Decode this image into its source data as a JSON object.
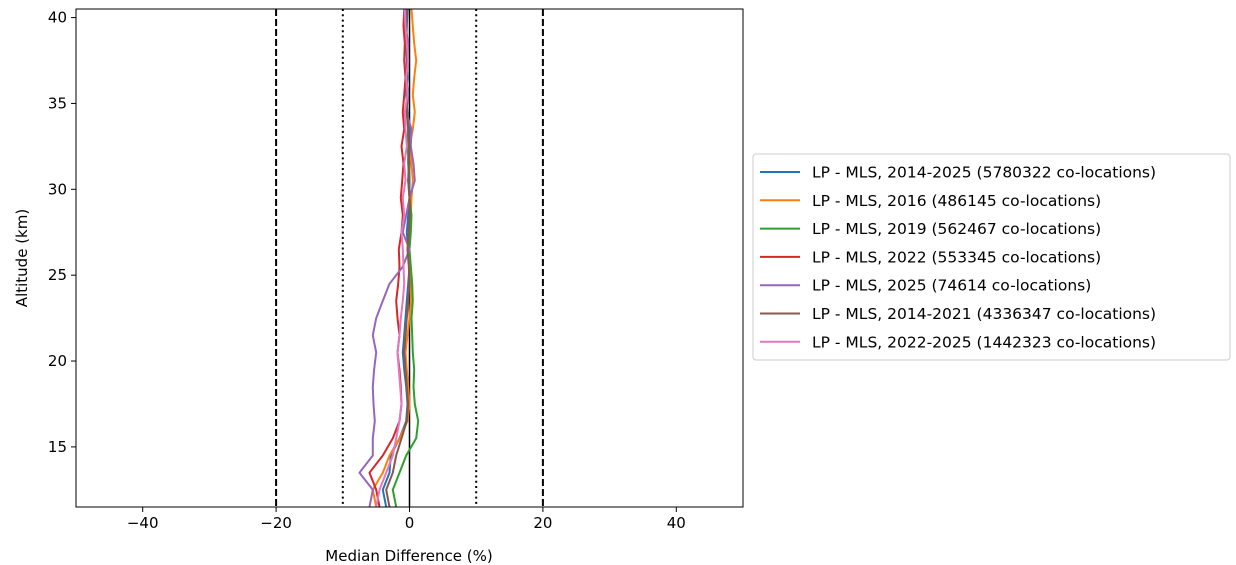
{
  "chart_data": {
    "type": "line",
    "title": "",
    "xlabel": "Median Difference (%)",
    "ylabel": "Altitude (km)",
    "xlim": [
      -50,
      50
    ],
    "ylim": [
      11.5,
      40.5
    ],
    "xticks": [
      -40,
      -20,
      0,
      20,
      40
    ],
    "yticks": [
      15,
      20,
      25,
      30,
      35,
      40
    ],
    "grid": false,
    "legend_placement": "outside-right",
    "reference_lines": [
      {
        "x": -20,
        "style": "dashed",
        "color": "#000000"
      },
      {
        "x": -10,
        "style": "dotted",
        "color": "#000000"
      },
      {
        "x": 0,
        "style": "solid",
        "color": "#000000"
      },
      {
        "x": 10,
        "style": "dotted",
        "color": "#000000"
      },
      {
        "x": 20,
        "style": "dashed",
        "color": "#000000"
      }
    ],
    "y": [
      11.5,
      12.5,
      13.5,
      14.5,
      15.5,
      16.5,
      17.5,
      18.5,
      19.5,
      20.5,
      21.5,
      22.5,
      23.5,
      24.5,
      25.5,
      26.5,
      27.5,
      28.5,
      29.5,
      30.5,
      31.5,
      32.5,
      33.5,
      34.5,
      35.5,
      36.5,
      37.5,
      38.5,
      39.5,
      40.5
    ],
    "series": [
      {
        "name": "LP - MLS, 2014-2025 (5780322 co-locations)",
        "color": "#1f77b4",
        "x": [
          -3.5,
          -4.0,
          -3.0,
          -2.8,
          -1.5,
          -0.5,
          -0.3,
          -0.5,
          -0.8,
          -1.0,
          -0.8,
          -0.6,
          -0.4,
          -0.2,
          0.0,
          -0.2,
          -0.4,
          -0.2,
          0.0,
          0.0,
          -0.2,
          -0.2,
          0.0,
          -0.3,
          -0.5,
          -0.3,
          -0.4,
          -0.5,
          -0.4,
          -0.3
        ]
      },
      {
        "name": "LP - MLS, 2016 (486145 co-locations)",
        "color": "#ff7f0e",
        "x": [
          -5.0,
          -5.5,
          -4.0,
          -3.0,
          -1.5,
          -0.3,
          0.0,
          -0.2,
          -0.4,
          -0.6,
          -0.3,
          0.0,
          0.2,
          0.3,
          0.0,
          -0.3,
          0.0,
          0.2,
          0.3,
          0.5,
          0.3,
          0.0,
          0.5,
          0.8,
          0.5,
          0.7,
          1.0,
          0.7,
          0.5,
          0.3
        ]
      },
      {
        "name": "LP - MLS, 2019 (562467 co-locations)",
        "color": "#2ca02c",
        "x": [
          -2.0,
          -2.5,
          -1.5,
          -0.5,
          1.0,
          1.3,
          0.8,
          0.6,
          0.7,
          0.5,
          0.4,
          0.3,
          0.5,
          0.4,
          0.2,
          0.0,
          0.2,
          0.3,
          0.0,
          -0.2,
          0.0,
          -0.3,
          -0.2,
          -0.4,
          -0.3,
          -0.5,
          -0.3,
          -0.5,
          -0.6,
          -0.6
        ]
      },
      {
        "name": "LP - MLS, 2022 (553345 co-locations)",
        "color": "#d62728",
        "x": [
          -4.5,
          -5.0,
          -6.0,
          -4.0,
          -2.5,
          -1.5,
          -1.2,
          -1.3,
          -1.5,
          -1.8,
          -1.5,
          -1.8,
          -2.0,
          -1.7,
          -1.5,
          -1.6,
          -1.2,
          -1.0,
          -1.3,
          -1.1,
          -0.9,
          -1.2,
          -0.8,
          -1.0,
          -0.8,
          -0.6,
          -0.8,
          -0.7,
          -0.9,
          -0.8
        ]
      },
      {
        "name": "LP - MLS, 2025 (74614 co-locations)",
        "color": "#9467bd",
        "x": [
          -6.0,
          -5.5,
          -7.5,
          -5.5,
          -5.5,
          -5.2,
          -5.4,
          -5.5,
          -5.3,
          -5.0,
          -5.5,
          -5.0,
          -4.0,
          -3.0,
          -1.0,
          0.0,
          -1.0,
          -0.5,
          0.0,
          0.8,
          0.6,
          0.2,
          0.3,
          -0.5,
          -0.2,
          -0.5,
          -0.4,
          -0.2,
          -0.6,
          -0.8
        ]
      },
      {
        "name": "LP - MLS, 2014-2021 (4336347 co-locations)",
        "color": "#8c564b",
        "x": [
          -3.0,
          -3.5,
          -2.5,
          -2.0,
          -1.2,
          -0.4,
          -0.2,
          -0.4,
          -0.6,
          -0.8,
          -0.6,
          -0.4,
          -0.2,
          0.0,
          -0.1,
          -0.3,
          -0.1,
          0.0,
          0.0,
          -0.2,
          -0.1,
          0.0,
          -0.2,
          -0.4,
          -0.3,
          -0.5,
          -0.3,
          -0.4,
          -0.5,
          -0.4
        ]
      },
      {
        "name": "LP - MLS, 2022-2025 (1442323 co-locations)",
        "color": "#e377c2",
        "x": [
          -5.0,
          -4.5,
          -3.5,
          -2.5,
          -2.0,
          -1.5,
          -1.2,
          -1.4,
          -1.6,
          -1.8,
          -1.5,
          -1.3,
          -1.0,
          -0.8,
          -0.9,
          -1.0,
          -1.2,
          -0.8,
          -1.0,
          -0.6,
          -0.8,
          -0.4,
          -0.6,
          -0.7,
          -0.3,
          -0.5,
          -0.2,
          -0.4,
          -0.6,
          -0.7
        ]
      }
    ]
  }
}
